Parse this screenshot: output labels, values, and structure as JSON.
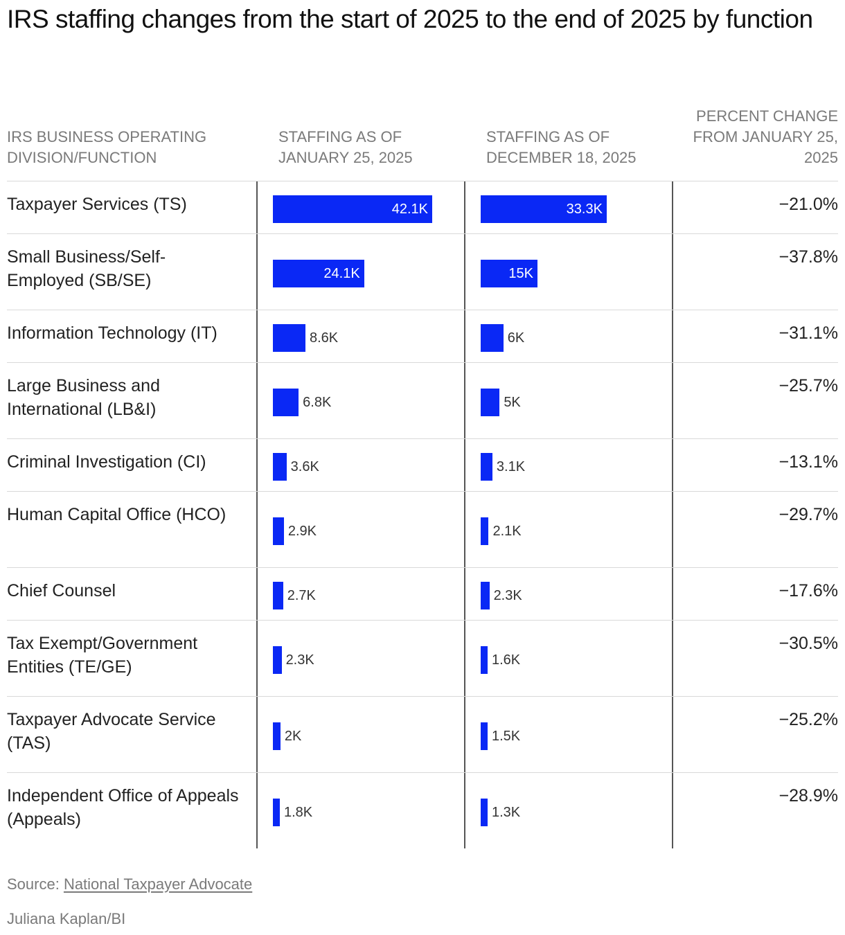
{
  "title": "IRS staffing changes from the start of 2025 to the end of 2025 by function",
  "headers": {
    "name": "IRS BUSINESS OPERATING DIVISION/FUNCTION",
    "jan": "STAFFING AS OF JANUARY 25, 2025",
    "dec": "STAFFING AS OF DECEMBER 18, 2025",
    "pct": "PERCENT CHANGE FROM JANUARY 25, 2025"
  },
  "colors": {
    "bar": "#0a28f5",
    "rule": "#d9d9d9",
    "divider": "#555555"
  },
  "chart_data": {
    "type": "table",
    "columns": [
      "IRS BUSINESS OPERATING DIVISION/FUNCTION",
      "STAFFING AS OF JANUARY 25, 2025",
      "STAFFING AS OF DECEMBER 18, 2025",
      "PERCENT CHANGE FROM JANUARY 25, 2025"
    ],
    "bar_max": 42100,
    "rows": [
      {
        "name": "Taxpayer Services (TS)",
        "jan": 42100,
        "jan_label": "42.1K",
        "dec": 33300,
        "dec_label": "33.3K",
        "pct": "−21.0%"
      },
      {
        "name": "Small Business/Self-Employed (SB/SE)",
        "jan": 24100,
        "jan_label": "24.1K",
        "dec": 15000,
        "dec_label": "15K",
        "pct": "−37.8%"
      },
      {
        "name": "Information Technology (IT)",
        "jan": 8600,
        "jan_label": "8.6K",
        "dec": 6000,
        "dec_label": "6K",
        "pct": "−31.1%"
      },
      {
        "name": "Large Business and International (LB&I)",
        "jan": 6800,
        "jan_label": "6.8K",
        "dec": 5000,
        "dec_label": "5K",
        "pct": "−25.7%"
      },
      {
        "name": "Criminal Investigation (CI)",
        "jan": 3600,
        "jan_label": "3.6K",
        "dec": 3100,
        "dec_label": "3.1K",
        "pct": "−13.1%"
      },
      {
        "name": "Human Capital Office (HCO)",
        "jan": 2900,
        "jan_label": "2.9K",
        "dec": 2100,
        "dec_label": "2.1K",
        "pct": "−29.7%"
      },
      {
        "name": "Chief Counsel",
        "jan": 2700,
        "jan_label": "2.7K",
        "dec": 2300,
        "dec_label": "2.3K",
        "pct": "−17.6%"
      },
      {
        "name": "Tax Exempt/Government Entities (TE/GE)",
        "jan": 2300,
        "jan_label": "2.3K",
        "dec": 1600,
        "dec_label": "1.6K",
        "pct": "−30.5%"
      },
      {
        "name": "Taxpayer Advocate Service (TAS)",
        "jan": 2000,
        "jan_label": "2K",
        "dec": 1500,
        "dec_label": "1.5K",
        "pct": "−25.2%"
      },
      {
        "name": "Independent Office of Appeals (Appeals)",
        "jan": 1800,
        "jan_label": "1.8K",
        "dec": 1300,
        "dec_label": "1.3K",
        "pct": "−28.9%"
      }
    ]
  },
  "source": {
    "prefix": "Source: ",
    "link": "National Taxpayer Advocate"
  },
  "credit": "Juliana Kaplan/BI"
}
